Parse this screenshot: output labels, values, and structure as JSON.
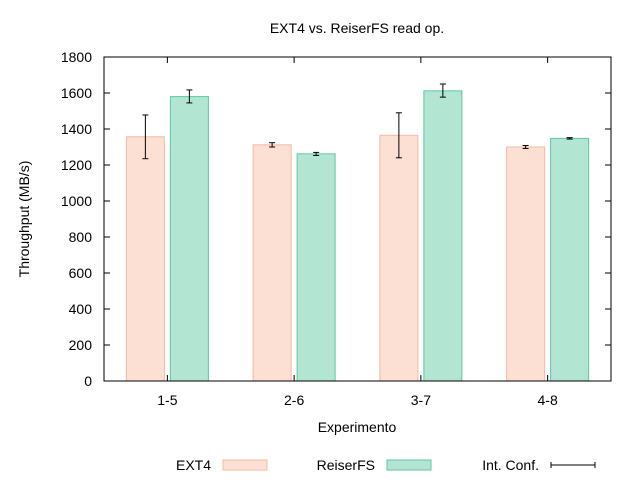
{
  "chart_data": {
    "type": "bar",
    "title": "EXT4 vs. ReiserFS read op.",
    "xlabel": "Experimento",
    "ylabel": "Throughput (MB/s)",
    "ylim": [
      0,
      1800
    ],
    "yticks": [
      "0",
      "200",
      "400",
      "600",
      "800",
      "1000",
      "1200",
      "1400",
      "1600",
      "1800"
    ],
    "categories": [
      "1-5",
      "2-6",
      "3-7",
      "4-8"
    ],
    "series": [
      {
        "name": "EXT4",
        "color": "#fde0d4",
        "edge": "#f5b9a3",
        "values": [
          1357,
          1312,
          1365,
          1300
        ],
        "err_low": [
          1235,
          1300,
          1240,
          1292
        ],
        "err_high": [
          1478,
          1324,
          1490,
          1308
        ]
      },
      {
        "name": "ReiserFS",
        "color": "#b2e6d2",
        "edge": "#5fc6a2",
        "values": [
          1580,
          1262,
          1612,
          1348
        ],
        "err_low": [
          1545,
          1253,
          1577,
          1344
        ],
        "err_high": [
          1617,
          1270,
          1650,
          1352
        ]
      }
    ],
    "errorbar_label": "Int. Conf.",
    "grid": false,
    "legend_position": "bottom"
  }
}
